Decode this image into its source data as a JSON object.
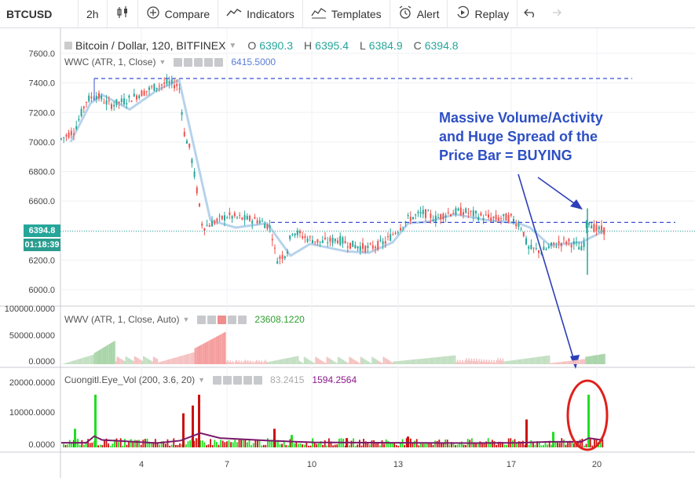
{
  "toolbar": {
    "symbol": "BTCUSD",
    "interval": "2h",
    "chart_type_icon": "candles-icon",
    "compare_label": "Compare",
    "indicators_label": "Indicators",
    "templates_label": "Templates",
    "alert_label": "Alert",
    "replay_label": "Replay",
    "undo_icon": "undo-icon",
    "redo_icon": "redo-icon"
  },
  "main_legend": {
    "title": "Bitcoin / Dollar, 120, BITFINEX",
    "open_label": "O",
    "open": "6390.3",
    "high_label": "H",
    "high": "6395.4",
    "low_label": "L",
    "low": "6384.9",
    "close_label": "C",
    "close": "6394.8"
  },
  "wwc_legend": {
    "name": "WWC (ATR, 1, Close)",
    "value": "6415.5000"
  },
  "wwv_legend": {
    "name": "WWV (ATR, 1, Close, Auto)",
    "value": "23608.1220"
  },
  "eye_legend": {
    "name": "Cuongitl.Eye_Vol (200, 3.6, 20)",
    "value1": "83.2415",
    "value2": "1594.2564"
  },
  "price_badge": {
    "price": "6394.8",
    "countdown": "01:18:39"
  },
  "price_axis": [
    "7600.0",
    "7400.0",
    "7200.0",
    "7000.0",
    "6800.0",
    "6600.0",
    "6200.0",
    "6000.0"
  ],
  "wwv_axis": [
    "100000.0000",
    "50000.0000",
    "0.0000"
  ],
  "eye_axis": [
    "20000.0000",
    "10000.0000",
    "0.0000"
  ],
  "time_axis": [
    "4",
    "7",
    "10",
    "13",
    "17",
    "20"
  ],
  "annotation": {
    "line1": "Massive Volume/Activity",
    "line2": "and Huge Spread of the",
    "line3": "Price Bar = BUYING"
  },
  "colors": {
    "up": "#26a69a",
    "down": "#ef5350",
    "annotation": "#2d4fc4",
    "highlight_circle": "#e0201c",
    "wwc_line": "#b7d3ec",
    "vol_green": "#22dd22",
    "vol_red": "#cc1111",
    "vol_avg": "#7a1a6a"
  }
}
